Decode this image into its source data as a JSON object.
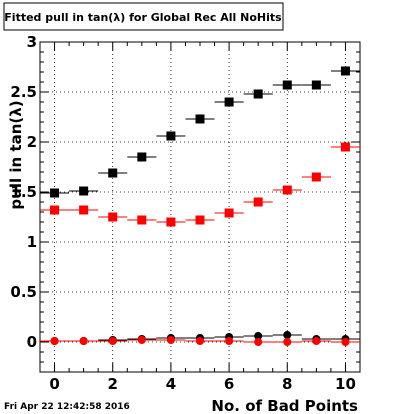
{
  "canvas": {
    "title": "Fitted pull in tan(λ) for Global Rec All NoHits",
    "timestamp": "Fri Apr 22 12:42:58 2016"
  },
  "chart_data": {
    "type": "scatter",
    "title": "Fitted pull in tan(λ) for Global Rec All NoHits",
    "xlabel": "No. of Bad Points",
    "ylabel": "pull in tan(λ)",
    "xlim": [
      -0.5,
      10.5
    ],
    "ylim": [
      -0.3,
      3.0
    ],
    "grid": true,
    "x_ticks": [
      "0",
      "2",
      "4",
      "6",
      "8",
      "10"
    ],
    "y_ticks": [
      "0",
      "0.5",
      "1",
      "1.5",
      "2",
      "2.5",
      "3"
    ],
    "x": [
      0,
      1,
      2,
      3,
      4,
      5,
      6,
      7,
      8,
      9,
      10
    ],
    "series": [
      {
        "marker": "square",
        "color": "#000000",
        "values": [
          1.49,
          1.51,
          1.69,
          1.85,
          2.06,
          2.23,
          2.4,
          2.48,
          2.57,
          2.57,
          2.71
        ]
      },
      {
        "marker": "square",
        "color": "#ff0000",
        "values": [
          1.32,
          1.32,
          1.25,
          1.22,
          1.2,
          1.22,
          1.29,
          1.4,
          1.52,
          1.65,
          1.95
        ]
      },
      {
        "marker": "circle",
        "color": "#000000",
        "values": [
          0.01,
          0.01,
          0.02,
          0.03,
          0.04,
          0.04,
          0.05,
          0.06,
          0.07,
          0.03,
          0.03
        ]
      },
      {
        "marker": "circle",
        "color": "#ff0000",
        "values": [
          0.01,
          0.01,
          0.01,
          0.02,
          0.02,
          0.01,
          0.01,
          0.0,
          0.0,
          0.01,
          0.0
        ]
      }
    ]
  }
}
